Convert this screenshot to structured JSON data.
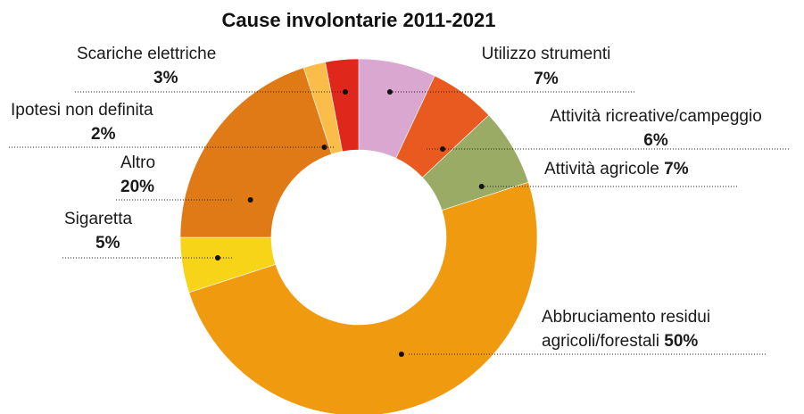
{
  "chart_data": {
    "type": "pie",
    "title": "Cause involontarie 2011-2021",
    "unit": "%",
    "slices": [
      {
        "name": "Utilizzo strumenti",
        "value": 7,
        "label": "7%",
        "color": "#d9a7cf"
      },
      {
        "name": "Attività ricreative/campeggio",
        "value": 6,
        "label": "6%",
        "color": "#e85a1f"
      },
      {
        "name": "Attività agricole",
        "value": 7,
        "label": "7%",
        "color": "#9aab65"
      },
      {
        "name": "Abbruciamento residui agricoli/forestali",
        "value": 50,
        "label": "50%",
        "color": "#f09a10"
      },
      {
        "name": "Sigaretta",
        "value": 5,
        "label": "5%",
        "color": "#f7d417"
      },
      {
        "name": "Altro",
        "value": 20,
        "label": "20%",
        "color": "#e07a17"
      },
      {
        "name": "Ipotesi non definita",
        "value": 2,
        "label": "2%",
        "color": "#fbbd4a"
      },
      {
        "name": "Scariche elettriche",
        "value": 3,
        "label": "3%",
        "color": "#e0271c"
      }
    ]
  }
}
